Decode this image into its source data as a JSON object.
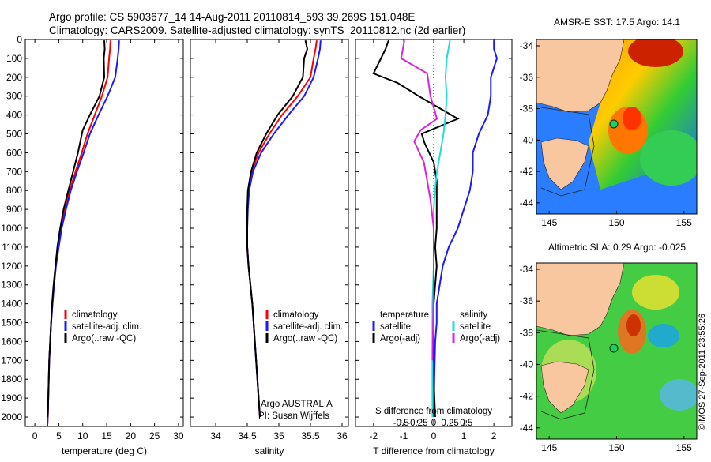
{
  "header": {
    "title_line1": "Argo profile: CS 5903677_14 14-Aug-2011 20110814_593 39.269S 151.048E",
    "title_line2": "Climatology: CARS2009. Satellite-adjusted climatology: synTS_20110812.nc (2d earlier)"
  },
  "colors": {
    "climatology": "#ff0000",
    "satellite": "#1a1aff",
    "argo": "#000000",
    "sat_salinity": "#22dddd",
    "argo_salinity": "#dd22dd",
    "land": "#f9c79f"
  },
  "chart_data": [
    {
      "id": "temperature",
      "type": "line",
      "xlabel": "temperature (deg C)",
      "ylabel": "",
      "xlim": [
        -2,
        31
      ],
      "ylim": [
        2050,
        0
      ],
      "xticks": [
        0,
        5,
        10,
        15,
        20,
        25,
        30
      ],
      "yticks": [
        0,
        100,
        200,
        300,
        400,
        500,
        600,
        700,
        800,
        900,
        1000,
        1100,
        1200,
        1300,
        1400,
        1500,
        1600,
        1700,
        1800,
        1900,
        2000
      ],
      "legend": {
        "placement": "lower-center",
        "labels": [
          "climatology",
          "satellite-adj. clim.",
          "Argo(..raw -QC)"
        ]
      },
      "series": [
        {
          "name": "climatology",
          "color": "#ff0000",
          "x": [
            15.8,
            15.7,
            15.5,
            15.2,
            14.0,
            12.5,
            11.0,
            9.8,
            8.5,
            7.3,
            6.3,
            5.5,
            4.9,
            4.4,
            4.0,
            3.7,
            3.4,
            3.2,
            3.0,
            2.9,
            2.8,
            2.7,
            2.6
          ],
          "y": [
            5,
            50,
            100,
            200,
            300,
            400,
            500,
            600,
            700,
            800,
            900,
            1000,
            1100,
            1200,
            1300,
            1400,
            1500,
            1600,
            1700,
            1800,
            1900,
            2000,
            2050
          ]
        },
        {
          "name": "satellite-adj. clim.",
          "color": "#1a1aff",
          "x": [
            17.6,
            17.5,
            17.3,
            16.8,
            15.2,
            13.3,
            11.5,
            10.2,
            8.8,
            7.5,
            6.5,
            5.6,
            5.0,
            4.4,
            4.0,
            3.7,
            3.4,
            3.2,
            3.0,
            2.9,
            2.8,
            2.7,
            2.6
          ],
          "y": [
            5,
            50,
            100,
            200,
            300,
            400,
            500,
            600,
            700,
            800,
            900,
            1000,
            1100,
            1200,
            1300,
            1400,
            1500,
            1600,
            1700,
            1800,
            1900,
            2000,
            2050
          ]
        },
        {
          "name": "Argo(..raw -QC)",
          "color": "#000000",
          "x": [
            14.5,
            14.6,
            14.4,
            14.5,
            13.5,
            11.5,
            10.0,
            9.0,
            8.0,
            7.0,
            6.0,
            5.3,
            4.7,
            4.3,
            3.9,
            3.6,
            3.4,
            3.2,
            3.0,
            2.9,
            2.8,
            2.7
          ],
          "y": [
            5,
            50,
            100,
            200,
            300,
            400,
            480,
            600,
            700,
            800,
            900,
            1000,
            1100,
            1200,
            1300,
            1400,
            1500,
            1600,
            1700,
            1800,
            1900,
            2000
          ]
        }
      ]
    },
    {
      "id": "salinity",
      "type": "line",
      "xlabel": "salinity",
      "ylabel": "",
      "xlim": [
        33.6,
        36.1
      ],
      "ylim": [
        2050,
        0
      ],
      "xticks": [
        34,
        34.5,
        35,
        35.5,
        36
      ],
      "annotation_line1": "Argo AUSTRALIA",
      "annotation_line2": "PI: Susan Wijffels",
      "legend": {
        "placement": "lower-center",
        "labels": [
          "climatology",
          "satellite-adj. clim.",
          "Argo(..raw -QC)"
        ]
      },
      "series": [
        {
          "name": "climatology",
          "color": "#ff0000",
          "x": [
            35.6,
            35.58,
            35.55,
            35.5,
            35.3,
            35.05,
            34.85,
            34.68,
            34.57,
            34.52,
            34.5,
            34.5,
            34.5,
            34.52,
            34.55,
            34.58,
            34.6,
            34.62,
            34.64,
            34.66,
            34.68,
            34.7
          ],
          "y": [
            5,
            50,
            100,
            200,
            300,
            400,
            500,
            600,
            700,
            800,
            900,
            1000,
            1100,
            1200,
            1300,
            1400,
            1500,
            1600,
            1700,
            1800,
            1900,
            2000
          ]
        },
        {
          "name": "satellite-adj. clim.",
          "color": "#1a1aff",
          "x": [
            35.66,
            35.65,
            35.62,
            35.55,
            35.4,
            35.15,
            34.92,
            34.72,
            34.59,
            34.53,
            34.51,
            34.5,
            34.5,
            34.52,
            34.55,
            34.58,
            34.6,
            34.62,
            34.64,
            34.66,
            34.68,
            34.7
          ],
          "y": [
            5,
            50,
            100,
            200,
            300,
            400,
            500,
            600,
            700,
            800,
            900,
            1000,
            1100,
            1200,
            1300,
            1400,
            1500,
            1600,
            1700,
            1800,
            1900,
            2000
          ]
        },
        {
          "name": "Argo(..raw -QC)",
          "color": "#000000",
          "x": [
            35.42,
            35.45,
            35.4,
            35.38,
            35.22,
            34.98,
            34.8,
            34.65,
            34.56,
            34.51,
            34.5,
            34.5,
            34.5,
            34.52,
            34.55,
            34.58,
            34.6,
            34.62,
            34.64,
            34.66,
            34.68,
            34.7
          ],
          "y": [
            5,
            50,
            100,
            200,
            300,
            400,
            500,
            600,
            700,
            800,
            900,
            1000,
            1100,
            1200,
            1300,
            1400,
            1500,
            1600,
            1700,
            1800,
            1900,
            2000
          ]
        }
      ]
    },
    {
      "id": "difference",
      "type": "line",
      "xlabel": "T difference from climatology",
      "xlabel_top": "S difference from climatology",
      "xlim": [
        -2.6,
        2.6
      ],
      "ylim": [
        2050,
        0
      ],
      "xticks": [
        -2,
        -1,
        0,
        1,
        2
      ],
      "xtick_labels": [
        "-2",
        "-1",
        "0",
        "1",
        "2"
      ],
      "sticks": [
        -0.5,
        -0.25,
        0,
        0.25,
        0.5
      ],
      "stick_labels": [
        "-0.5",
        "-0.25",
        "0",
        "0.25",
        "0.5"
      ],
      "legend": {
        "placement": "lower-center",
        "temperature_header": "temperature",
        "salinity_header": "salinity",
        "labels_temperature": [
          "satellite",
          "Argo(-adj)"
        ],
        "labels_salinity": [
          "satellite",
          "Argo(-adj)"
        ]
      },
      "series": [
        {
          "name": "temperature satellite",
          "color": "#1a1aff",
          "x": [
            2.0,
            2.0,
            2.1,
            1.9,
            1.9,
            1.8,
            1.5,
            1.3,
            1.3,
            1.2,
            1.0,
            0.8,
            0.5,
            0.3,
            0.2,
            0.1,
            0.1,
            0.05,
            0.02,
            0.0
          ],
          "y": [
            5,
            50,
            100,
            200,
            300,
            400,
            500,
            600,
            700,
            800,
            900,
            1000,
            1100,
            1200,
            1300,
            1400,
            1500,
            1600,
            1800,
            2000
          ]
        },
        {
          "name": "temperature Argo(-adj)",
          "color": "#000000",
          "x": [
            -1.5,
            -1.6,
            -2.0,
            -1.2,
            -0.5,
            0.8,
            -0.4,
            -0.3,
            0.0,
            0.1,
            0.1,
            0.1,
            0.05,
            0.1,
            0.05,
            0.0,
            0.0,
            0.0,
            0.05
          ],
          "y": [
            5,
            50,
            180,
            230,
            300,
            420,
            500,
            550,
            650,
            750,
            900,
            1000,
            1100,
            1200,
            1300,
            1400,
            1600,
            1800,
            2000
          ]
        },
        {
          "name": "salinity satellite",
          "color": "#22dddd",
          "x": [
            0.25,
            0.2,
            0.18,
            0.2,
            0.18,
            0.15,
            0.1,
            0.05,
            0.02,
            0.0,
            0.0,
            0.0,
            -0.02,
            -0.02,
            -0.02
          ],
          "y": [
            5,
            100,
            200,
            300,
            400,
            500,
            600,
            700,
            800,
            900,
            1000,
            1200,
            1400,
            1700,
            2000
          ]
        },
        {
          "name": "salinity Argo(-adj)",
          "color": "#dd22dd",
          "x": [
            -0.45,
            -0.5,
            -0.1,
            -0.05,
            0.05,
            -0.2,
            -0.3,
            -0.15,
            -0.1,
            -0.05,
            0.0,
            0.0,
            -0.02
          ],
          "y": [
            5,
            100,
            180,
            300,
            420,
            480,
            540,
            650,
            750,
            850,
            1000,
            1300,
            1700
          ]
        }
      ]
    }
  ],
  "maps": [
    {
      "id": "sst",
      "title": "AMSR-E SST: 17.5 Argo: 14.1",
      "lon_ticks": [
        "145",
        "150",
        "155"
      ],
      "lat_ticks": [
        "-34",
        "-36",
        "-38",
        "-40",
        "-42",
        "-44"
      ]
    },
    {
      "id": "sla",
      "title": "Altimetric SLA: 0.29 Argo: -0.025",
      "lon_ticks": [
        "145",
        "150",
        "155"
      ],
      "lat_ticks": [
        "-34",
        "-36",
        "-38",
        "-40",
        "-42",
        "-44"
      ]
    }
  ],
  "footer": {
    "credit": "©IMOS 27-Sep-2011 23:55:26"
  }
}
